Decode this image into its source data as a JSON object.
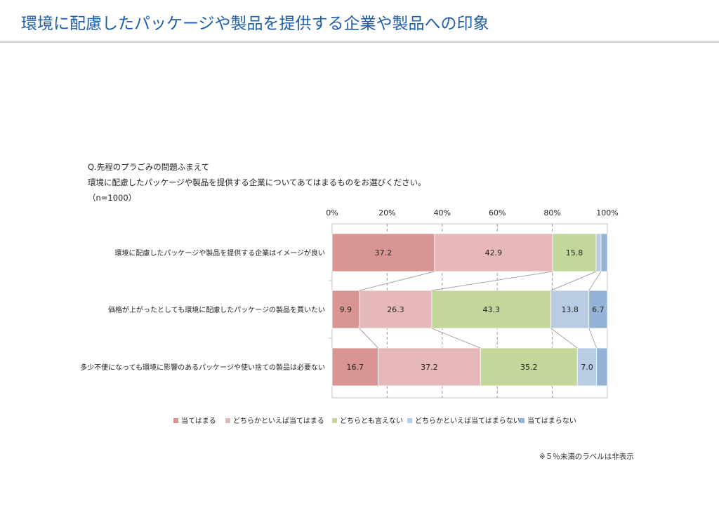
{
  "header": {
    "title": "環境に配慮したパッケージや製品を提供する企業や製品への印象"
  },
  "question": {
    "line1": "Q.先程のプラごみの問題ふまえて",
    "line2": "環境に配慮したパッケージや製品を提供する企業についてあてはまるものをお選びください。",
    "line3": "（n=1000）"
  },
  "footnote": "※５％未満のラベルは非表示",
  "chart_data": {
    "type": "bar",
    "orientation": "horizontal-stacked-100",
    "xlim": [
      0,
      100
    ],
    "x_ticks": [
      "0%",
      "20%",
      "40%",
      "60%",
      "80%",
      "100%"
    ],
    "categories": [
      "環境に配慮したパッケージや製品を提供する企業はイメージが良い",
      "価格が上がったとしても環境に配慮したパッケージの製品を買いたい",
      "多少不便になっても環境に影響のあるパッケージや使い捨ての製品は必要ない"
    ],
    "series": [
      {
        "name": "当てはまる",
        "color": "#d99494",
        "values": [
          37.2,
          9.9,
          16.7
        ],
        "labels": [
          "37.2",
          "9.9",
          "16.7"
        ]
      },
      {
        "name": "どちらかといえば当てはまる",
        "color": "#e6b8b7",
        "values": [
          42.9,
          26.3,
          37.2
        ],
        "labels": [
          "42.9",
          "26.3",
          "37.2"
        ]
      },
      {
        "name": "どちらとも言えない",
        "color": "#c4d79b",
        "values": [
          15.8,
          43.3,
          35.2
        ],
        "labels": [
          "15.8",
          "43.3",
          "35.2"
        ]
      },
      {
        "name": "どちらかといえば当てはまらない",
        "color": "#b8cce4",
        "values": [
          1.8,
          13.8,
          7.0
        ],
        "labels": [
          "",
          "13.8",
          "7.0"
        ]
      },
      {
        "name": "当てはまらない",
        "color": "#95b3d7",
        "values": [
          2.3,
          6.7,
          3.9
        ],
        "labels": [
          "",
          "6.7",
          ""
        ]
      }
    ],
    "grid": true,
    "series_lines": true,
    "legend_position": "bottom"
  }
}
